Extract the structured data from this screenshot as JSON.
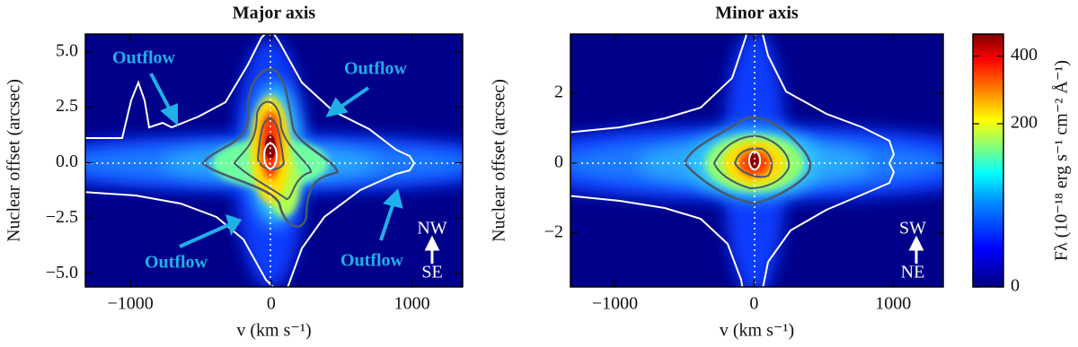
{
  "chart_data": [
    {
      "type": "heatmap",
      "title": "Major axis",
      "x_label": "v (km s⁻¹)",
      "y_label": "Nuclear offset (arcsec)",
      "xlim": [
        -1320,
        1360
      ],
      "ylim": [
        -5.6,
        5.8
      ],
      "xticks": [
        {
          "value": -1000,
          "label": "−1000"
        },
        0,
        1000
      ],
      "yticks": [
        {
          "value": -5,
          "label": "−5.0"
        },
        {
          "value": -2.5,
          "label": "−2.5"
        },
        {
          "value": 0,
          "label": "0.0"
        },
        {
          "value": 2.5,
          "label": "2.5"
        },
        {
          "value": 5,
          "label": "5.0"
        }
      ],
      "annotations": [
        "Outflow",
        "Outflow",
        "Outflow",
        "Outflow"
      ],
      "orientation": {
        "top": "NW",
        "bottom": "SE"
      }
    },
    {
      "type": "heatmap",
      "title": "Minor axis",
      "x_label": "v (km s⁻¹)",
      "y_label": "Nuclear offset (arcsec)",
      "xlim": [
        -1320,
        1360
      ],
      "ylim": [
        -3.55,
        3.7
      ],
      "xticks": [
        {
          "value": -1000,
          "label": "−1000"
        },
        0,
        1000
      ],
      "yticks": [
        {
          "value": -2,
          "label": "−2"
        },
        0,
        2
      ],
      "annotations": [],
      "orientation": {
        "top": "SW",
        "bottom": "NE"
      }
    },
    {
      "type": "colorbar",
      "y_label": "Fλ (10⁻¹⁸ erg s⁻¹ cm⁻² Å⁻¹)",
      "ylim": [
        0,
        480
      ],
      "yticks": [
        0,
        200,
        400
      ],
      "scale": "sqrt"
    }
  ]
}
